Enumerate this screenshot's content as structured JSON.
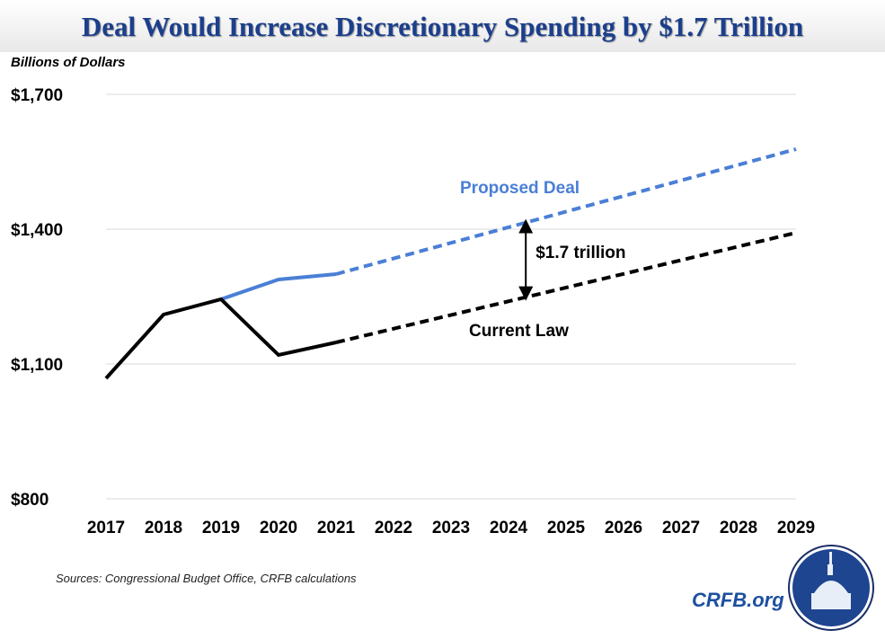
{
  "title": "Deal Would Increase Discretionary Spending by $1.7 Trillion",
  "source": "Sources: Congressional Budget Office, CRFB calculations",
  "brand": "CRFB.org",
  "logo": "capitol-dome-seal",
  "chart_data": {
    "type": "line",
    "title": "Deal Would Increase Discretionary Spending by $1.7 Trillion",
    "ylabel": "Billions of Dollars",
    "xlabel": "",
    "ylim": [
      800,
      1700
    ],
    "yticks": [
      800,
      1100,
      1400,
      1700
    ],
    "ytick_labels": [
      "$800",
      "$1,100",
      "$1,400",
      "$1,700"
    ],
    "x": [
      2017,
      2018,
      2019,
      2020,
      2021,
      2022,
      2023,
      2024,
      2025,
      2026,
      2027,
      2028,
      2029
    ],
    "grid": true,
    "projection_start": 2021,
    "series": [
      {
        "name": "Proposed Deal",
        "color": "#4a7fd6",
        "x": [
          2019,
          2020,
          2021,
          2029
        ],
        "values": [
          1244,
          1288,
          1300,
          1578
        ]
      },
      {
        "name": "Current Law",
        "color": "#000000",
        "x": [
          2017,
          2018,
          2019,
          2020,
          2021,
          2029
        ],
        "values": [
          1068,
          1210,
          1244,
          1120,
          1148,
          1392
        ]
      }
    ],
    "annotation": {
      "text": "$1.7 trillion",
      "x": 2024.3
    }
  }
}
